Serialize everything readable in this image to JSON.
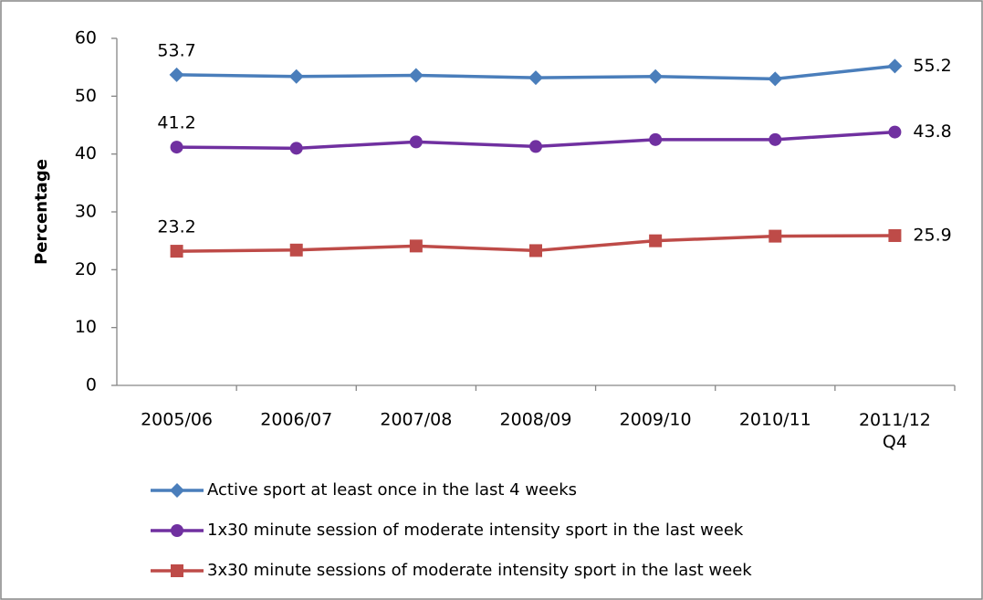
{
  "chart_data": {
    "type": "line",
    "y_label": "Percentage",
    "categories": [
      "2005/06",
      "2006/07",
      "2007/08",
      "2008/09",
      "2009/10",
      "2010/11",
      "2011/12\nQ4"
    ],
    "series": [
      {
        "name": "Active sport at least once in the last 4 weeks",
        "color": "#4a7ebb",
        "marker": "diamond",
        "values": [
          53.7,
          53.4,
          53.6,
          53.2,
          53.4,
          53.0,
          55.2
        ]
      },
      {
        "name": "1x30 minute session of moderate intensity sport in the last week",
        "color": "#7030a0",
        "marker": "circle",
        "values": [
          41.2,
          41.0,
          42.1,
          41.3,
          42.5,
          42.5,
          43.8
        ]
      },
      {
        "name": "3x30 minute sessions of moderate intensity sport in the last week",
        "color": "#be4b48",
        "marker": "square",
        "values": [
          23.2,
          23.4,
          24.1,
          23.3,
          25.0,
          25.8,
          25.9
        ]
      }
    ],
    "data_labels": "ends",
    "ylim": [
      0,
      60
    ],
    "yticks": [
      0,
      10,
      20,
      30,
      40,
      50,
      60
    ],
    "grid": false,
    "legend": "bottom"
  }
}
